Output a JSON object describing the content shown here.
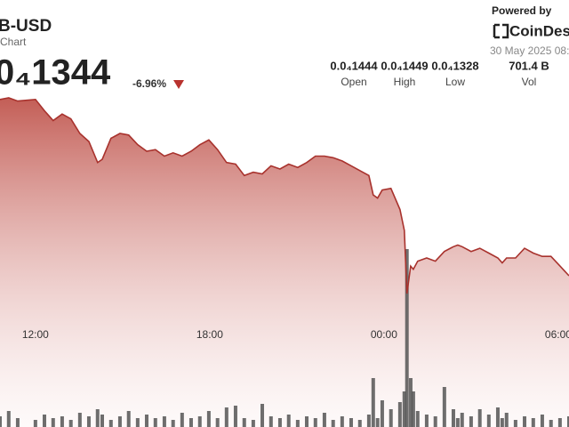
{
  "header": {
    "symbol": "B-USD",
    "subtitle": "Chart",
    "price": "0₄1344",
    "change": "-6.96%",
    "powered_by": "Powered by",
    "brand": "CoinDes",
    "timestamp": "30 May 2025 08:"
  },
  "stats": [
    {
      "value": "0.0₄1444",
      "label": "Open"
    },
    {
      "value": "0.0₄1449",
      "label": "High"
    },
    {
      "value": "0.0₄1328",
      "label": "Low"
    },
    {
      "value": "701.4 B",
      "label": "Vol"
    }
  ],
  "chart_data": {
    "type": "area",
    "x": [
      -1.22,
      -0.92,
      -0.61,
      0,
      0.31,
      0.61,
      0.92,
      1.22,
      1.53,
      1.84,
      2.14,
      2.3,
      2.6,
      2.91,
      3.21,
      3.52,
      3.83,
      4.13,
      4.44,
      4.74,
      5.05,
      5.36,
      5.66,
      5.97,
      6.27,
      6.58,
      6.89,
      7.19,
      7.5,
      7.81,
      8.11,
      8.42,
      8.72,
      9.03,
      9.34,
      9.64,
      9.95,
      10.25,
      10.56,
      10.87,
      11.17,
      11.48,
      11.63,
      11.78,
      11.94,
      12.24,
      12.55,
      12.7,
      12.79,
      12.92,
      13.01,
      13.16,
      13.47,
      13.77,
      14.08,
      14.39,
      14.54,
      14.69,
      15.0,
      15.3,
      15.61,
      15.92,
      16.07,
      16.22,
      16.53,
      16.84,
      17.14,
      17.45,
      17.75,
      18.06,
      18.37
    ],
    "values": [
      1.448e-05,
      1.449e-05,
      1.447e-05,
      1.448e-05,
      1.441e-05,
      1.435e-05,
      1.439e-05,
      1.436e-05,
      1.427e-05,
      1.422e-05,
      1.409e-05,
      1.411e-05,
      1.424e-05,
      1.427e-05,
      1.426e-05,
      1.42e-05,
      1.416e-05,
      1.417e-05,
      1.413e-05,
      1.415e-05,
      1.413e-05,
      1.416e-05,
      1.42e-05,
      1.423e-05,
      1.417e-05,
      1.409e-05,
      1.408e-05,
      1.401e-05,
      1.403e-05,
      1.402e-05,
      1.407e-05,
      1.405e-05,
      1.408e-05,
      1.406e-05,
      1.409e-05,
      1.413e-05,
      1.413e-05,
      1.412e-05,
      1.41e-05,
      1.407e-05,
      1.404e-05,
      1.401e-05,
      1.389e-05,
      1.387e-05,
      1.392e-05,
      1.393e-05,
      1.38e-05,
      1.367e-05,
      1.328e-05,
      1.345e-05,
      1.343e-05,
      1.348e-05,
      1.35e-05,
      1.348e-05,
      1.354e-05,
      1.357e-05,
      1.358e-05,
      1.357e-05,
      1.354e-05,
      1.356e-05,
      1.353e-05,
      1.35e-05,
      1.347e-05,
      1.35e-05,
      1.35e-05,
      1.356e-05,
      1.353e-05,
      1.351e-05,
      1.351e-05,
      1.345e-05,
      1.339e-05
    ],
    "color": "#a8322d",
    "xlim": [
      -1.22,
      18.37
    ],
    "ylim": [
      1.3115e-05,
      1.4545e-05
    ],
    "xticks": [
      {
        "value": 0,
        "label": "12:00"
      },
      {
        "value": 6,
        "label": "18:00"
      },
      {
        "value": 12,
        "label": "00:00"
      },
      {
        "value": 18,
        "label": "06:00"
      }
    ],
    "volume": {
      "type": "bar",
      "color": "#555555",
      "values": [
        12,
        18,
        10,
        8,
        14,
        10,
        12,
        8,
        16,
        12,
        20,
        14,
        8,
        12,
        18,
        10,
        14,
        10,
        12,
        8,
        16,
        10,
        12,
        18,
        10,
        22,
        24,
        10,
        8,
        26,
        12,
        10,
        14,
        8,
        12,
        10,
        16,
        8,
        12,
        10,
        8,
        14,
        55,
        10,
        30,
        20,
        28,
        40,
        200,
        55,
        40,
        18,
        14,
        12,
        45,
        20,
        10,
        16,
        12,
        20,
        14,
        22,
        10,
        16,
        8,
        12,
        10,
        14,
        8,
        10,
        12
      ],
      "ylim": [
        0,
        220
      ]
    }
  }
}
